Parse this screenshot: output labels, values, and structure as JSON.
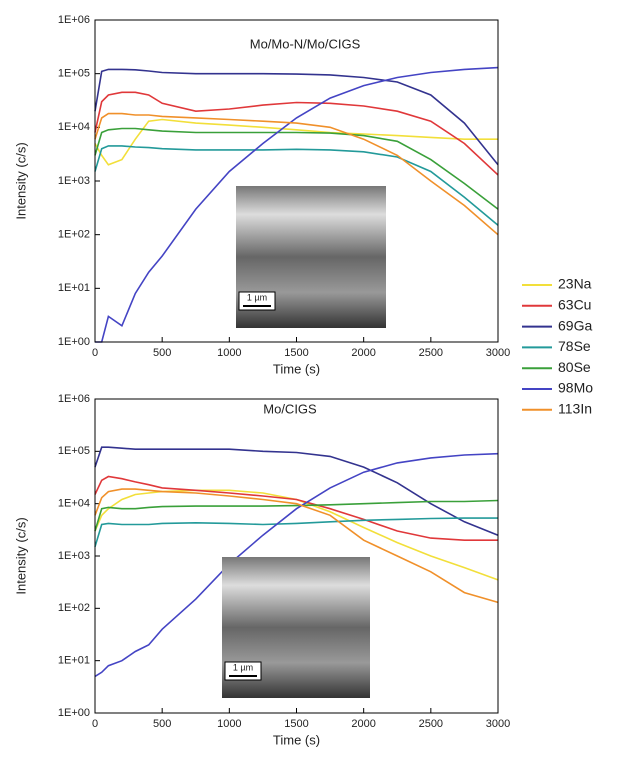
{
  "chart_data": [
    {
      "type": "line",
      "title": "Mo/Mo-N/Mo/CIGS",
      "x_label": "Time (s)",
      "y_label": "Intensity (c/s)",
      "log_scale": true,
      "legend": "right",
      "inset_scale_label": "1 µm",
      "x": [
        0,
        50,
        100,
        200,
        300,
        400,
        500,
        750,
        1000,
        1250,
        1500,
        1750,
        2000,
        2250,
        2500,
        2750,
        3000
      ],
      "xlim": [
        0,
        3000
      ],
      "xticks": [
        0,
        500,
        1000,
        1500,
        2000,
        2500,
        3000
      ],
      "ylim": [
        1,
        1000000
      ],
      "yticks": [
        {
          "value": 1,
          "label": "1E+00"
        },
        {
          "value": 10,
          "label": "1E+01"
        },
        {
          "value": 100,
          "label": "1E+02"
        },
        {
          "value": 1000,
          "label": "1E+03"
        },
        {
          "value": 10000,
          "label": "1E+04"
        },
        {
          "value": 100000,
          "label": "1E+05"
        },
        {
          "value": 1000000,
          "label": "1E+06"
        }
      ],
      "series": [
        {
          "name": "23Na",
          "color": "#f2df3a",
          "values": [
            5000,
            3000,
            2000,
            2500,
            6000,
            13000,
            14000,
            12000,
            11000,
            10000,
            9000,
            8000,
            7500,
            7000,
            6500,
            6000,
            6000
          ]
        },
        {
          "name": "63Cu",
          "color": "#e0383a",
          "values": [
            8000,
            30000,
            40000,
            45000,
            45000,
            40000,
            28000,
            20000,
            22000,
            26000,
            29000,
            28000,
            25000,
            20000,
            13000,
            5000,
            1300
          ]
        },
        {
          "name": "69Ga",
          "color": "#33338f",
          "values": [
            20000,
            110000,
            120000,
            120000,
            118000,
            112000,
            105000,
            100000,
            100000,
            100000,
            98000,
            95000,
            85000,
            70000,
            40000,
            12000,
            2000
          ]
        },
        {
          "name": "78Se",
          "color": "#239a9a",
          "values": [
            1500,
            4000,
            4500,
            4500,
            4300,
            4200,
            4000,
            3800,
            3800,
            3800,
            3900,
            3800,
            3500,
            2800,
            1500,
            500,
            150
          ]
        },
        {
          "name": "80Se",
          "color": "#3aa03a",
          "values": [
            3000,
            8000,
            9000,
            9500,
            9500,
            9000,
            8500,
            8000,
            8000,
            8000,
            8000,
            7800,
            7000,
            5500,
            2500,
            900,
            300
          ]
        },
        {
          "name": "98Mo",
          "color": "#4444c4",
          "values": [
            1,
            1,
            3,
            2,
            8,
            20,
            40,
            300,
            1500,
            5000,
            15000,
            35000,
            60000,
            85000,
            105000,
            120000,
            130000
          ]
        },
        {
          "name": "113In",
          "color": "#f0902a",
          "values": [
            6000,
            15000,
            18000,
            18000,
            17000,
            17000,
            16000,
            15000,
            14000,
            13000,
            12000,
            10000,
            6000,
            3000,
            1000,
            350,
            100
          ]
        }
      ]
    },
    {
      "type": "line",
      "title": "Mo/CIGS",
      "x_label": "Time (s)",
      "y_label": "Intensity (c/s)",
      "log_scale": true,
      "inset_scale_label": "1 µm",
      "x": [
        0,
        50,
        100,
        200,
        300,
        400,
        500,
        750,
        1000,
        1250,
        1500,
        1750,
        2000,
        2250,
        2500,
        2750,
        3000
      ],
      "xlim": [
        0,
        3000
      ],
      "xticks": [
        0,
        500,
        1000,
        1500,
        2000,
        2500,
        3000
      ],
      "ylim": [
        1,
        1000000
      ],
      "yticks": [
        {
          "value": 1,
          "label": "1E+00"
        },
        {
          "value": 10,
          "label": "1E+01"
        },
        {
          "value": 100,
          "label": "1E+02"
        },
        {
          "value": 1000,
          "label": "1E+03"
        },
        {
          "value": 10000,
          "label": "1E+04"
        },
        {
          "value": 100000,
          "label": "1E+05"
        },
        {
          "value": 1000000,
          "label": "1E+06"
        }
      ],
      "series": [
        {
          "color": "#f2df3a",
          "values": [
            3000,
            6000,
            8000,
            12000,
            15000,
            16000,
            17000,
            18000,
            18000,
            16000,
            12000,
            7000,
            3500,
            1800,
            1000,
            600,
            350
          ]
        },
        {
          "color": "#e0383a",
          "values": [
            15000,
            28000,
            33000,
            30000,
            26000,
            23000,
            20000,
            18000,
            16000,
            14000,
            12000,
            8000,
            5000,
            3000,
            2200,
            2000,
            2000
          ]
        },
        {
          "color": "#33338f",
          "values": [
            50000,
            120000,
            120000,
            115000,
            110000,
            110000,
            110000,
            110000,
            110000,
            100000,
            95000,
            80000,
            50000,
            25000,
            10000,
            4500,
            2500
          ]
        },
        {
          "color": "#239a9a",
          "values": [
            1500,
            4000,
            4200,
            4000,
            4000,
            4000,
            4200,
            4300,
            4200,
            4000,
            4200,
            4500,
            4800,
            5000,
            5200,
            5300,
            5300
          ]
        },
        {
          "color": "#3aa03a",
          "values": [
            3000,
            8000,
            8500,
            8000,
            8000,
            8500,
            8800,
            9000,
            9000,
            9000,
            9200,
            9500,
            10000,
            10500,
            11000,
            11000,
            11500
          ]
        },
        {
          "color": "#4444c4",
          "values": [
            5,
            6,
            8,
            10,
            15,
            20,
            40,
            150,
            700,
            2500,
            8000,
            20000,
            40000,
            60000,
            75000,
            85000,
            90000
          ]
        },
        {
          "color": "#f0902a",
          "values": [
            6000,
            13000,
            17000,
            19000,
            19000,
            18000,
            17000,
            16000,
            14000,
            12000,
            10000,
            6000,
            2000,
            1000,
            500,
            200,
            130
          ]
        }
      ]
    }
  ]
}
